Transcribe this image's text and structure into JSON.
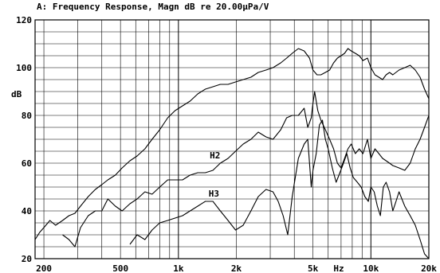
{
  "chart_data": {
    "type": "line",
    "title": "A: Frequency Response, Magn dB re 20.00µPa/V",
    "ylabel": "dB",
    "xlabel": "Hz",
    "xscale": "log",
    "xlim": [
      180,
      20000
    ],
    "ylim": [
      20,
      120
    ],
    "grid": true,
    "x_ticks": [
      {
        "value": 200,
        "label": "200"
      },
      {
        "value": 500,
        "label": "500"
      },
      {
        "value": 1000,
        "label": "1k"
      },
      {
        "value": 2000,
        "label": "2k"
      },
      {
        "value": 5000,
        "label": "5k"
      },
      {
        "value": 10000,
        "label": "10k"
      },
      {
        "value": 20000,
        "label": "20k"
      }
    ],
    "y_ticks": [
      20,
      40,
      60,
      80,
      100,
      120
    ],
    "annotations": [
      {
        "text": "H2",
        "x": 1550,
        "y": 62
      },
      {
        "text": "H3",
        "x": 1530,
        "y": 46
      }
    ],
    "series": [
      {
        "name": "",
        "x": [
          180,
          190,
          200,
          215,
          230,
          250,
          270,
          290,
          310,
          340,
          370,
          400,
          430,
          470,
          510,
          560,
          610,
          670,
          730,
          800,
          880,
          960,
          1050,
          1150,
          1260,
          1380,
          1510,
          1650,
          1810,
          1980,
          2170,
          2380,
          2600,
          2850,
          3100,
          3400,
          3650,
          3900,
          4200,
          4500,
          4800,
          5000,
          5250,
          5500,
          5800,
          6100,
          6400,
          6700,
          7000,
          7300,
          7600,
          7900,
          8300,
          8700,
          9100,
          9600,
          10000,
          10500,
          11000,
          11500,
          12000,
          12500,
          13000,
          14000,
          15000,
          16000,
          17000,
          18000,
          19000,
          20000
        ],
        "y": [
          28,
          31,
          33,
          36,
          34,
          36,
          38,
          39,
          42,
          46,
          49,
          51,
          53,
          55,
          58,
          61,
          63,
          66,
          70,
          74,
          79,
          82,
          84,
          86,
          89,
          91,
          92,
          93,
          93,
          94,
          95,
          96,
          98,
          99,
          100,
          102,
          104,
          106,
          108,
          107,
          104,
          99,
          97,
          97,
          98,
          99,
          102,
          104,
          105,
          106,
          108,
          107,
          106,
          105,
          103,
          104,
          100,
          97,
          96,
          95,
          97,
          98,
          97,
          99,
          100,
          101,
          99,
          96,
          91,
          87
        ]
      },
      {
        "name": "",
        "x": [
          250,
          270,
          290,
          310,
          340,
          370,
          400,
          430,
          470,
          510,
          560,
          610,
          670,
          730,
          800,
          880,
          960,
          1050,
          1150,
          1260,
          1380,
          1510,
          1650,
          1810,
          1980,
          2170,
          2380,
          2600,
          2850,
          3100,
          3400,
          3650,
          3900,
          4200,
          4500,
          4700,
          4900,
          5000,
          5100,
          5300,
          5500,
          5800,
          6100,
          6400,
          6700,
          7000,
          7300,
          7600,
          7900,
          8300,
          8700,
          9100,
          9600,
          10000,
          10500,
          11000,
          11500,
          12000,
          12500,
          13000,
          14000,
          15000,
          16000,
          17000,
          18000,
          19000,
          20000
        ],
        "y": [
          30,
          28,
          25,
          33,
          38,
          40,
          40,
          45,
          42,
          40,
          43,
          45,
          48,
          47,
          50,
          53,
          53,
          53,
          55,
          56,
          56,
          57,
          60,
          62,
          65,
          68,
          70,
          73,
          71,
          70,
          74,
          79,
          80,
          80,
          83,
          75,
          79,
          85,
          90,
          82,
          78,
          74,
          70,
          66,
          60,
          58,
          62,
          66,
          68,
          64,
          66,
          64,
          70,
          62,
          66,
          64,
          62,
          61,
          60,
          59,
          58,
          57,
          60,
          66,
          70,
          75,
          80
        ]
      },
      {
        "name": "",
        "x": [
          560,
          610,
          670,
          730,
          800,
          880,
          960,
          1050,
          1150,
          1260,
          1380,
          1510,
          1650,
          1810,
          1980,
          2170,
          2380,
          2600,
          2850,
          3100,
          3300,
          3500,
          3700,
          3900,
          4200,
          4500,
          4700,
          4900,
          5000,
          5200,
          5400,
          5600,
          5800,
          6000,
          6300,
          6600,
          6900,
          7200,
          7500,
          7800,
          8100,
          8500,
          8900,
          9300,
          9700,
          10000,
          10400,
          10800,
          11200,
          11600,
          12000,
          12500,
          13000,
          13500,
          14000,
          15000,
          16000,
          17000,
          18000,
          19000,
          20000
        ],
        "y": [
          26,
          30,
          28,
          32,
          35,
          36,
          37,
          38,
          40,
          42,
          44,
          44,
          40,
          36,
          32,
          34,
          40,
          46,
          49,
          48,
          44,
          38,
          30,
          46,
          62,
          68,
          70,
          50,
          57,
          64,
          76,
          78,
          70,
          66,
          58,
          52,
          56,
          60,
          64,
          58,
          54,
          52,
          50,
          46,
          44,
          50,
          48,
          42,
          38,
          50,
          52,
          48,
          40,
          44,
          48,
          42,
          38,
          34,
          28,
          22,
          20
        ]
      }
    ]
  }
}
